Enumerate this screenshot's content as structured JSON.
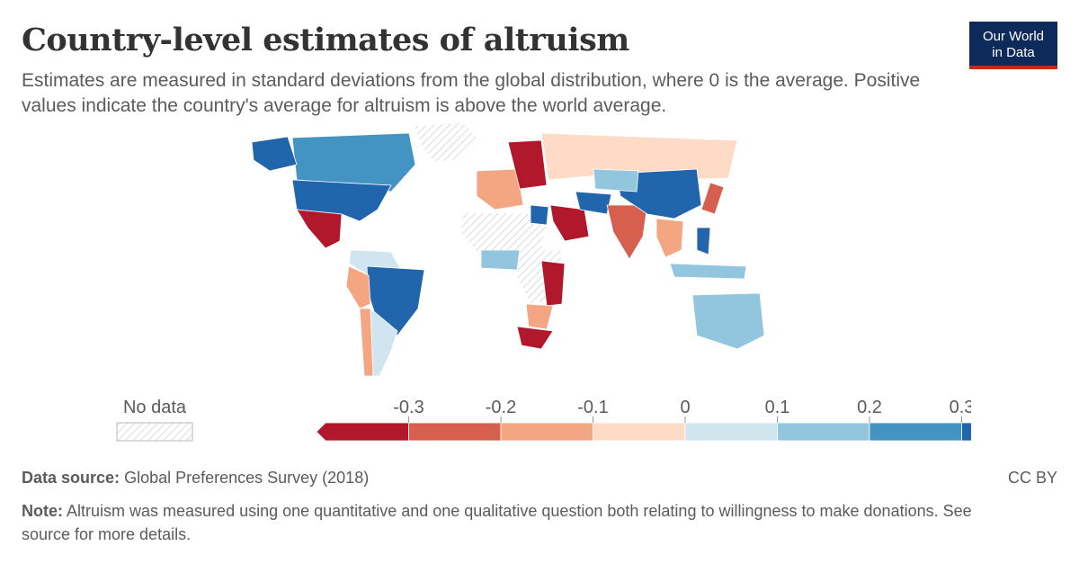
{
  "header": {
    "title": "Country-level estimates of altruism",
    "subtitle": "Estimates are measured in standard deviations from the global distribution, where 0 is the average. Positive values indicate the country's average for altruism is above the world average."
  },
  "logo": {
    "line1": "Our World",
    "line2": "in Data"
  },
  "legend": {
    "no_data_label": "No data",
    "ticks": [
      "-0.3",
      "-0.2",
      "-0.1",
      "0",
      "0.1",
      "0.2",
      "0.3"
    ],
    "bins": [
      {
        "color": "#b2182b"
      },
      {
        "color": "#d6604d"
      },
      {
        "color": "#f4a582"
      },
      {
        "color": "#fddbc7"
      },
      {
        "color": "#d1e5f0"
      },
      {
        "color": "#92c5de"
      },
      {
        "color": "#4393c3"
      },
      {
        "color": "#2166ac"
      }
    ],
    "no_data_color": "#e0e0e0"
  },
  "footer": {
    "source_label": "Data source:",
    "source_text": "Global Preferences Survey (2018)",
    "license": "CC BY",
    "note_label": "Note:",
    "note_text": "Altruism was measured using one quantitative and one qualitative question both relating to willingness to make donations. See source for more details."
  },
  "map_regions": [
    {
      "name": "canada",
      "color": "#4393c3"
    },
    {
      "name": "usa",
      "color": "#2166ac"
    },
    {
      "name": "mexico",
      "color": "#b2182b"
    },
    {
      "name": "greenland",
      "color": "#e0e0e0"
    },
    {
      "name": "alaska",
      "color": "#2166ac"
    },
    {
      "name": "south-america-north",
      "color": "#d1e5f0"
    },
    {
      "name": "brazil",
      "color": "#2166ac"
    },
    {
      "name": "peru",
      "color": "#f4a582"
    },
    {
      "name": "argentina",
      "color": "#d1e5f0"
    },
    {
      "name": "chile",
      "color": "#f4a582"
    },
    {
      "name": "russia",
      "color": "#fddbc7"
    },
    {
      "name": "europe-west",
      "color": "#f4a582"
    },
    {
      "name": "europe-central",
      "color": "#b2182b"
    },
    {
      "name": "north-africa",
      "color": "#e0e0e0"
    },
    {
      "name": "egypt",
      "color": "#2166ac"
    },
    {
      "name": "saudi-arabia",
      "color": "#b2182b"
    },
    {
      "name": "iran",
      "color": "#2166ac"
    },
    {
      "name": "india",
      "color": "#d6604d"
    },
    {
      "name": "china",
      "color": "#2166ac"
    },
    {
      "name": "kazakhstan",
      "color": "#92c5de"
    },
    {
      "name": "southeast-asia",
      "color": "#f4a582"
    },
    {
      "name": "japan",
      "color": "#d6604d"
    },
    {
      "name": "indonesia",
      "color": "#92c5de"
    },
    {
      "name": "philippines",
      "color": "#2166ac"
    },
    {
      "name": "australia",
      "color": "#92c5de"
    },
    {
      "name": "central-africa",
      "color": "#e0e0e0"
    },
    {
      "name": "east-africa",
      "color": "#b2182b"
    },
    {
      "name": "southern-africa",
      "color": "#f4a582"
    },
    {
      "name": "south-africa",
      "color": "#b2182b"
    },
    {
      "name": "west-africa",
      "color": "#92c5de"
    }
  ]
}
